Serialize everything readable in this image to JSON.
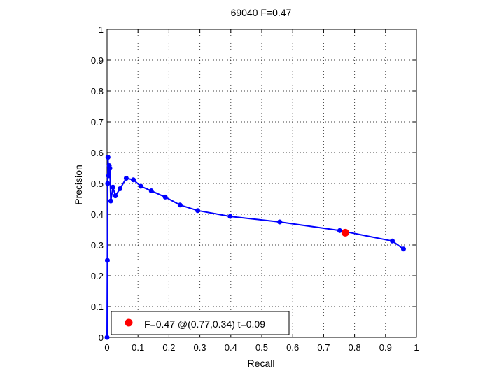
{
  "chart_data": {
    "type": "line",
    "title": "69040 F=0.47",
    "xlabel": "Recall",
    "ylabel": "Precision",
    "xlim": [
      0,
      1
    ],
    "ylim": [
      0,
      1
    ],
    "grid": true,
    "x_ticks": [
      "0",
      "0.1",
      "0.2",
      "0.3",
      "0.4",
      "0.5",
      "0.6",
      "0.7",
      "0.8",
      "0.9",
      "1"
    ],
    "y_ticks": [
      "0",
      "0.1",
      "0.2",
      "0.3",
      "0.4",
      "0.5",
      "0.6",
      "0.7",
      "0.8",
      "0.9",
      "1"
    ],
    "series": [
      {
        "color": "#0000ff",
        "marker": "dot",
        "points": [
          {
            "x": 0.958,
            "y": 0.287
          },
          {
            "x": 0.922,
            "y": 0.313
          },
          {
            "x": 0.752,
            "y": 0.347
          },
          {
            "x": 0.558,
            "y": 0.375
          },
          {
            "x": 0.398,
            "y": 0.393
          },
          {
            "x": 0.293,
            "y": 0.412
          },
          {
            "x": 0.236,
            "y": 0.43
          },
          {
            "x": 0.188,
            "y": 0.456
          },
          {
            "x": 0.143,
            "y": 0.476
          },
          {
            "x": 0.109,
            "y": 0.491
          },
          {
            "x": 0.085,
            "y": 0.512
          },
          {
            "x": 0.062,
            "y": 0.517
          },
          {
            "x": 0.042,
            "y": 0.483
          },
          {
            "x": 0.027,
            "y": 0.46
          },
          {
            "x": 0.019,
            "y": 0.488
          },
          {
            "x": 0.012,
            "y": 0.443
          },
          {
            "x": 0.009,
            "y": 0.549
          },
          {
            "x": 0.007,
            "y": 0.558
          },
          {
            "x": 0.005,
            "y": 0.525
          },
          {
            "x": 0.003,
            "y": 0.585
          },
          {
            "x": 0.002,
            "y": 0.5
          },
          {
            "x": 0.001,
            "y": 0.25
          },
          {
            "x": 0.0,
            "y": 0.0
          }
        ]
      }
    ],
    "highlight": {
      "x": 0.77,
      "y": 0.34,
      "color": "#ff0000"
    },
    "legend": {
      "position": "bottom-left",
      "text": "F=0.47 @(0.77,0.34) t=0.09"
    }
  }
}
